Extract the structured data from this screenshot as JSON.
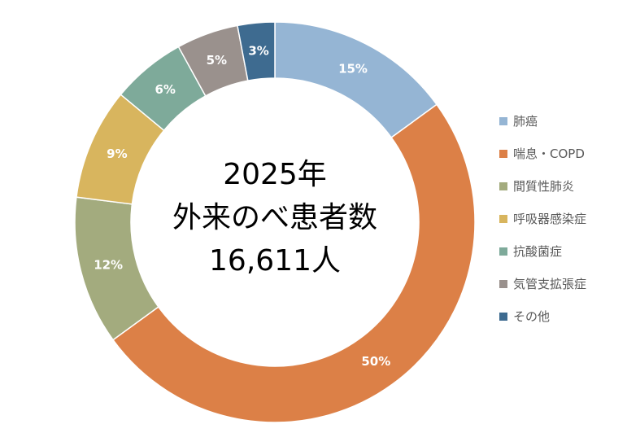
{
  "chart_data": {
    "type": "pie",
    "variant": "donut",
    "title_lines": [
      "2025年",
      "外来のべ患者数",
      "16,611人"
    ],
    "categories": [
      "肺癌",
      "喘息・COPD",
      "間質性肺炎",
      "呼吸器感染症",
      "抗酸菌症",
      "気管支拡張症",
      "その他"
    ],
    "values": [
      15,
      50,
      12,
      9,
      6,
      5,
      3
    ],
    "data_labels": [
      "15%",
      "50%",
      "12%",
      "9%",
      "6%",
      "5%",
      "3%"
    ],
    "colors": [
      "#95b5d4",
      "#dc8047",
      "#a3ab7e",
      "#d8b55e",
      "#7eaa9a",
      "#9a918d",
      "#3e6b90"
    ],
    "legend_position": "right",
    "start": "top, clockwise"
  }
}
